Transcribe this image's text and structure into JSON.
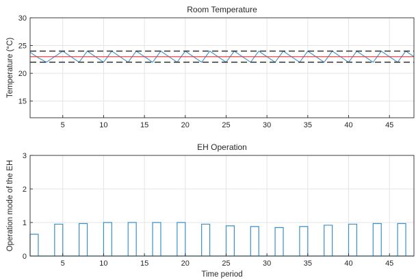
{
  "chart_data": [
    {
      "type": "line",
      "title": "Room Temperature",
      "xlabel": "",
      "ylabel": "Temperature (°C)",
      "xlim": [
        1,
        48
      ],
      "ylim": [
        12,
        30
      ],
      "xticks": [
        5,
        10,
        15,
        20,
        25,
        30,
        35,
        40,
        45
      ],
      "yticks": [
        15,
        20,
        25,
        30
      ],
      "grid": true,
      "series": [
        {
          "kind": "line",
          "color": "#3a8fc9",
          "x": [
            1,
            2,
            3,
            4,
            5,
            6,
            7,
            8,
            9,
            10,
            11,
            12,
            13,
            14,
            15,
            16,
            17,
            18,
            19,
            20,
            21,
            22,
            23,
            24,
            25,
            26,
            27,
            28,
            29,
            30,
            31,
            32,
            33,
            34,
            35,
            36,
            37,
            38,
            39,
            40,
            41,
            42,
            43,
            44,
            45,
            46,
            47,
            48
          ],
          "values": [
            23.8,
            22.8,
            22.0,
            23.0,
            24.0,
            23.0,
            22.0,
            24.0,
            23.0,
            22.0,
            24.0,
            23.0,
            22.0,
            24.0,
            23.0,
            22.0,
            24.0,
            23.0,
            22.0,
            24.0,
            23.0,
            22.0,
            24.0,
            23.0,
            22.0,
            24.0,
            23.0,
            22.0,
            24.0,
            23.0,
            22.0,
            24.0,
            23.0,
            22.0,
            24.0,
            23.0,
            22.0,
            24.0,
            23.0,
            22.0,
            24.0,
            23.0,
            22.0,
            24.0,
            23.0,
            22.0,
            24.0,
            23.0
          ]
        },
        {
          "kind": "line",
          "color": "#e0303a",
          "x": [
            1,
            48
          ],
          "values": [
            23.0,
            23.0
          ]
        },
        {
          "kind": "dashed",
          "color": "#333333",
          "x": [
            1,
            48
          ],
          "values": [
            24.0,
            24.0
          ]
        },
        {
          "kind": "dashed",
          "color": "#333333",
          "x": [
            1,
            48
          ],
          "values": [
            22.0,
            22.0
          ]
        }
      ]
    },
    {
      "type": "bar",
      "title": "EH Operation",
      "xlabel": "Time period",
      "ylabel": "Operation mode of the EH",
      "xlim": [
        1,
        48
      ],
      "ylim": [
        0,
        3
      ],
      "xticks": [
        5,
        10,
        15,
        20,
        25,
        30,
        35,
        40,
        45
      ],
      "yticks": [
        0,
        1,
        2,
        3
      ],
      "grid": true,
      "series": [
        {
          "color": "#3a8fc9",
          "x": [
            1,
            4,
            7,
            10,
            13,
            16,
            19,
            22,
            25,
            28,
            31,
            34,
            37,
            40,
            43,
            46
          ],
          "values": [
            0.65,
            0.95,
            0.97,
            1.0,
            1.0,
            1.0,
            1.0,
            0.95,
            0.9,
            0.88,
            0.85,
            0.88,
            0.92,
            0.95,
            0.97,
            0.97
          ]
        }
      ]
    }
  ]
}
